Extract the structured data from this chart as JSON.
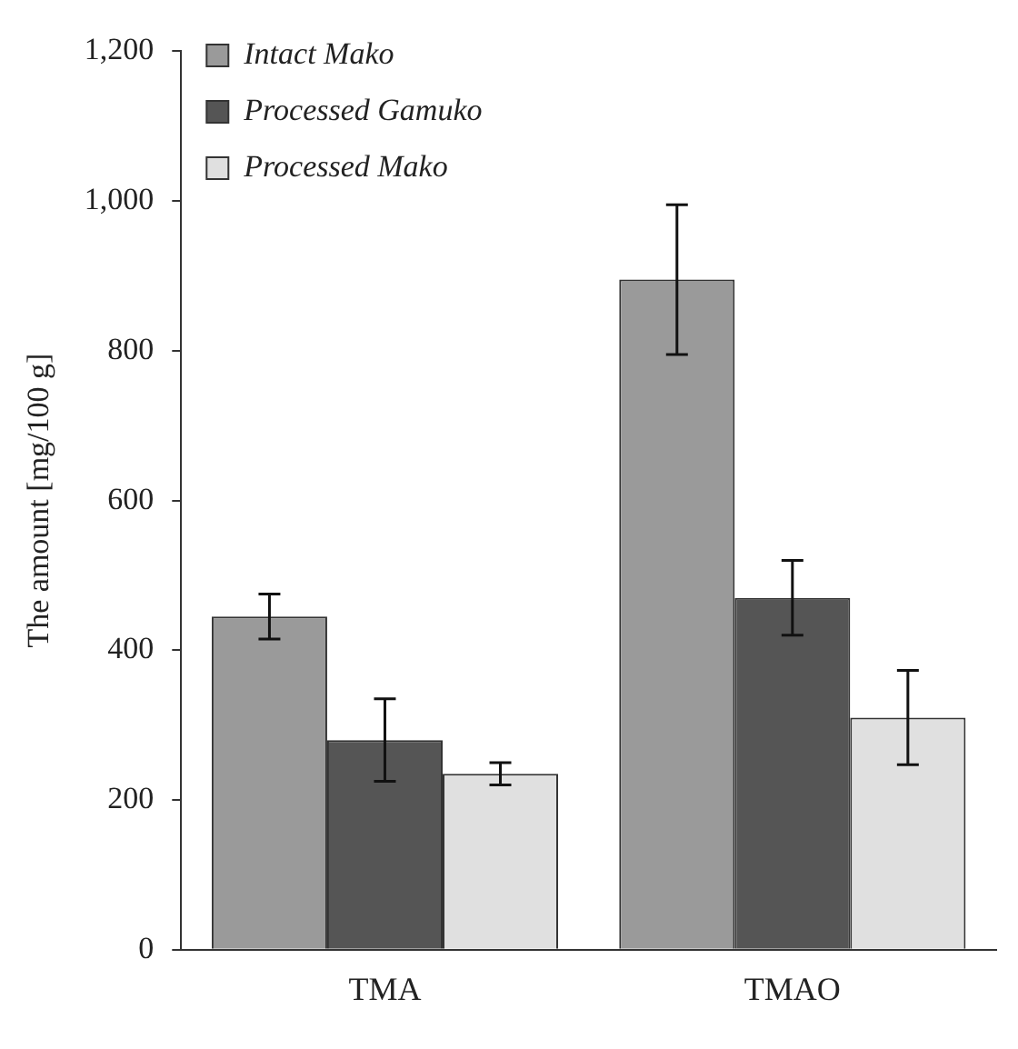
{
  "chart_data": {
    "type": "bar",
    "ylabel": "The amount [mg/100 g]",
    "categories": [
      "TMA",
      "TMAO"
    ],
    "series": [
      {
        "name": "Intact Mako",
        "color": "#9a9a9a",
        "values": [
          445,
          895
        ],
        "errors": [
          30,
          100
        ]
      },
      {
        "name": "Processed Gamuko",
        "color": "#555555",
        "values": [
          280,
          470
        ],
        "errors": [
          55,
          50
        ]
      },
      {
        "name": "Processed Mako",
        "color": "#e0e0e0",
        "values": [
          235,
          310
        ],
        "errors": [
          15,
          63
        ]
      }
    ],
    "ylim": [
      0,
      1200
    ],
    "yticks": [
      0,
      200,
      400,
      600,
      800,
      {
        "value": 1000,
        "label": "1,000"
      },
      {
        "value": 1200,
        "label": "1,200"
      }
    ],
    "grid": false,
    "legend": "top left"
  }
}
